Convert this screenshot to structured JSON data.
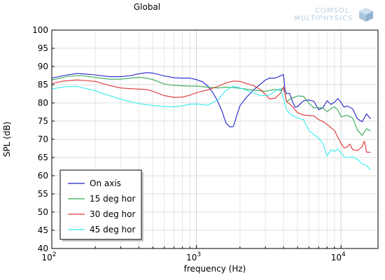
{
  "logo": {
    "line1": "COMSOL",
    "line2": "MULTIPHYSICS"
  },
  "chart_data": {
    "type": "line",
    "title": "Global",
    "xlabel": "frequency (Hz)",
    "ylabel": "SPL (dB)",
    "xscale": "log",
    "xlim": [
      100,
      18000
    ],
    "ylim": [
      40,
      100
    ],
    "yticks": [
      40,
      45,
      50,
      55,
      60,
      65,
      70,
      75,
      80,
      85,
      90,
      95,
      100
    ],
    "xticks": [
      {
        "value": 100,
        "base": "10",
        "exp": "2"
      },
      {
        "value": 1000,
        "base": "10",
        "exp": "3"
      },
      {
        "value": 10000,
        "base": "10",
        "exp": "4"
      }
    ],
    "grid": true,
    "legend_position": "bottom-left",
    "series": [
      {
        "name": "On axis",
        "color": "#2222cc",
        "x": [
          100,
          120,
          150,
          200,
          250,
          300,
          350,
          400,
          450,
          500,
          600,
          700,
          800,
          900,
          1000,
          1100,
          1200,
          1300,
          1400,
          1500,
          1600,
          1700,
          1800,
          1900,
          2000,
          2200,
          2500,
          2800,
          3000,
          3200,
          3500,
          3800,
          4000,
          4100,
          4200,
          4400,
          4600,
          4800,
          5000,
          5500,
          6000,
          6500,
          7000,
          7500,
          8000,
          8500,
          9000,
          9500,
          10000,
          10500,
          11000,
          12000,
          13000,
          14000,
          15000,
          16000
        ],
        "values": [
          86.8,
          87.5,
          88.1,
          87.7,
          87.2,
          87.2,
          87.5,
          88.0,
          88.3,
          88.2,
          87.4,
          86.9,
          86.8,
          86.8,
          86.4,
          85.8,
          84.6,
          82.8,
          80.5,
          77.8,
          74.5,
          73.4,
          73.5,
          76.5,
          79.2,
          81.4,
          83.7,
          85.3,
          86.3,
          86.8,
          86.8,
          87.4,
          87.8,
          83.5,
          82.5,
          82.7,
          80.5,
          78.8,
          79.0,
          80.6,
          80.8,
          80.4,
          78.1,
          78.7,
          80.6,
          79.6,
          80.2,
          81.2,
          80.1,
          78.8,
          79.2,
          78.4,
          75.6,
          74.8,
          77.0,
          75.6
        ]
      },
      {
        "name": "15 deg hor",
        "color": "#33aa55",
        "x": [
          100,
          130,
          160,
          200,
          250,
          300,
          350,
          400,
          450,
          500,
          600,
          700,
          800,
          900,
          1000,
          1200,
          1400,
          1600,
          1800,
          2000,
          2500,
          3000,
          3500,
          3800,
          4000,
          4200,
          4500,
          5000,
          5500,
          6000,
          6500,
          7000,
          7500,
          8000,
          8500,
          9000,
          9500,
          10000,
          11000,
          12000,
          13000,
          14000,
          15000,
          16000
        ],
        "values": [
          86.3,
          87.3,
          87.5,
          87.0,
          86.5,
          86.5,
          86.8,
          87.0,
          86.8,
          86.4,
          85.2,
          84.8,
          84.7,
          84.6,
          84.6,
          84.3,
          84.1,
          84.3,
          84.2,
          84.0,
          83.5,
          83.2,
          83.7,
          83.4,
          84.2,
          80.3,
          81.2,
          81.9,
          81.8,
          79.9,
          78.6,
          78.7,
          78.6,
          77.6,
          78.4,
          78.9,
          78.0,
          76.2,
          76.6,
          75.9,
          72.5,
          71.1,
          72.9,
          72.3
        ]
      },
      {
        "name": "30 deg hor",
        "color": "#dd3333",
        "x": [
          100,
          120,
          150,
          200,
          250,
          300,
          350,
          400,
          450,
          500,
          600,
          700,
          800,
          900,
          1000,
          1200,
          1400,
          1600,
          1800,
          2000,
          2500,
          2800,
          3000,
          3200,
          3500,
          3800,
          4000,
          4200,
          4500,
          5000,
          5500,
          6000,
          6500,
          7000,
          7500,
          8000,
          9000,
          10000,
          10500,
          11000,
          11500,
          12000,
          13000,
          14000,
          14500,
          15000,
          16000
        ],
        "values": [
          85.3,
          86.0,
          86.3,
          85.9,
          84.8,
          84.1,
          83.9,
          83.8,
          83.7,
          83.2,
          82.0,
          81.5,
          81.6,
          82.1,
          82.8,
          83.6,
          84.5,
          85.5,
          86.0,
          85.9,
          84.7,
          83.5,
          82.3,
          81.1,
          81.3,
          82.6,
          84.4,
          80.4,
          79.4,
          77.3,
          76.7,
          76.5,
          76.4,
          75.4,
          74.9,
          74.1,
          72.4,
          68.8,
          67.6,
          67.9,
          68.7,
          67.2,
          66.9,
          68.0,
          69.5,
          66.5,
          66.4
        ]
      },
      {
        "name": "45 deg hor",
        "color": "#33eeee",
        "x": [
          100,
          120,
          150,
          200,
          250,
          300,
          350,
          400,
          450,
          500,
          600,
          700,
          800,
          900,
          1000,
          1100,
          1200,
          1400,
          1600,
          1800,
          2000,
          2500,
          2800,
          3000,
          3200,
          3500,
          3800,
          4000,
          4200,
          4500,
          5000,
          5500,
          6000,
          6500,
          7000,
          7500,
          8000,
          8500,
          9000,
          9500,
          10000,
          10500,
          11000,
          12000,
          13000,
          14000,
          15000,
          16000
        ],
        "values": [
          83.8,
          84.4,
          84.5,
          83.3,
          82.0,
          81.0,
          80.3,
          79.8,
          79.5,
          79.3,
          79.0,
          78.9,
          79.2,
          79.6,
          79.7,
          79.5,
          79.4,
          80.8,
          83.4,
          84.6,
          84.1,
          82.7,
          82.0,
          82.0,
          82.2,
          83.2,
          84.0,
          81.3,
          78.0,
          76.8,
          75.8,
          75.4,
          72.4,
          71.3,
          70.3,
          68.8,
          65.4,
          67.1,
          66.7,
          67.3,
          66.3,
          65.2,
          65.0,
          65.2,
          64.5,
          63.2,
          62.8,
          61.6
        ]
      }
    ]
  }
}
